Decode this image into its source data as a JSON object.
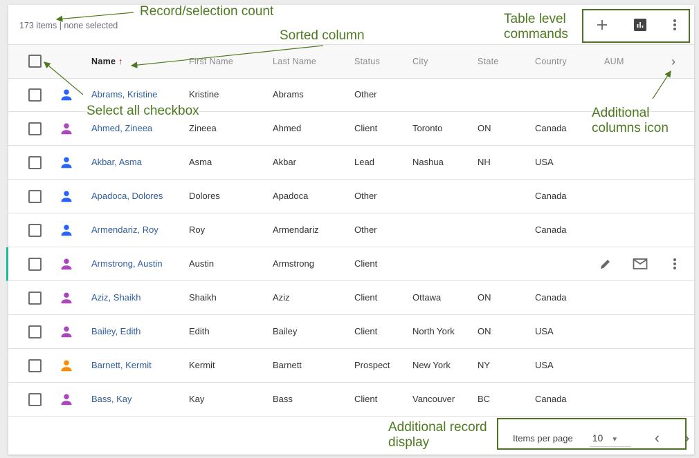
{
  "summary": {
    "count_text": "173 items",
    "separator": "|",
    "selection_text": "none selected"
  },
  "table_commands": {
    "add": "plus-icon",
    "chart": "bar-chart-icon",
    "more": "more-vert-icon"
  },
  "columns": [
    "Name",
    "First Name",
    "Last Name",
    "Status",
    "City",
    "State",
    "Country",
    "AUM"
  ],
  "sort": {
    "column": "Name",
    "direction": "ascending"
  },
  "rows": [
    {
      "name": "Abrams, Kristine",
      "first": "Kristine",
      "last": "Abrams",
      "status": "Other",
      "city": "",
      "state": "",
      "country": "",
      "color": "#2962ff"
    },
    {
      "name": "Ahmed, Zineea",
      "first": "Zineea",
      "last": "Ahmed",
      "status": "Client",
      "city": "Toronto",
      "state": "ON",
      "country": "Canada",
      "color": "#ab47bc"
    },
    {
      "name": "Akbar, Asma",
      "first": "Asma",
      "last": "Akbar",
      "status": "Lead",
      "city": "Nashua",
      "state": "NH",
      "country": "USA",
      "color": "#2962ff"
    },
    {
      "name": "Apadoca, Dolores",
      "first": "Dolores",
      "last": "Apadoca",
      "status": "Other",
      "city": "",
      "state": "",
      "country": "Canada",
      "color": "#2962ff"
    },
    {
      "name": "Armendariz, Roy",
      "first": "Roy",
      "last": "Armendariz",
      "status": "Other",
      "city": "",
      "state": "",
      "country": "Canada",
      "color": "#2962ff"
    },
    {
      "name": "Armstrong, Austin",
      "first": "Austin",
      "last": "Armstrong",
      "status": "Client",
      "city": "",
      "state": "",
      "country": "",
      "color": "#ab47bc",
      "hovered": true
    },
    {
      "name": "Aziz, Shaikh",
      "first": "Shaikh",
      "last": "Aziz",
      "status": "Client",
      "city": "Ottawa",
      "state": "ON",
      "country": "Canada",
      "color": "#ab47bc"
    },
    {
      "name": "Bailey, Edith",
      "first": "Edith",
      "last": "Bailey",
      "status": "Client",
      "city": "North York",
      "state": "ON",
      "country": "USA",
      "color": "#ab47bc"
    },
    {
      "name": "Barnett, Kermit",
      "first": "Kermit",
      "last": "Barnett",
      "status": "Prospect",
      "city": "New York",
      "state": "NY",
      "country": "USA",
      "color": "#fb8c00"
    },
    {
      "name": "Bass, Kay",
      "first": "Kay",
      "last": "Bass",
      "status": "Client",
      "city": "Vancouver",
      "state": "BC",
      "country": "Canada",
      "color": "#ab47bc"
    }
  ],
  "pager": {
    "label": "Items per page",
    "value": "10"
  },
  "annotations": {
    "count": "Record/selection count",
    "sorted": "Sorted column",
    "table_level_1": "Table level",
    "table_level_2": "commands",
    "select_all": "Select all checkbox",
    "add_cols_1": "Additional",
    "add_cols_2": "columns icon",
    "add_rec_1": "Additional record",
    "add_rec_2": "display"
  }
}
